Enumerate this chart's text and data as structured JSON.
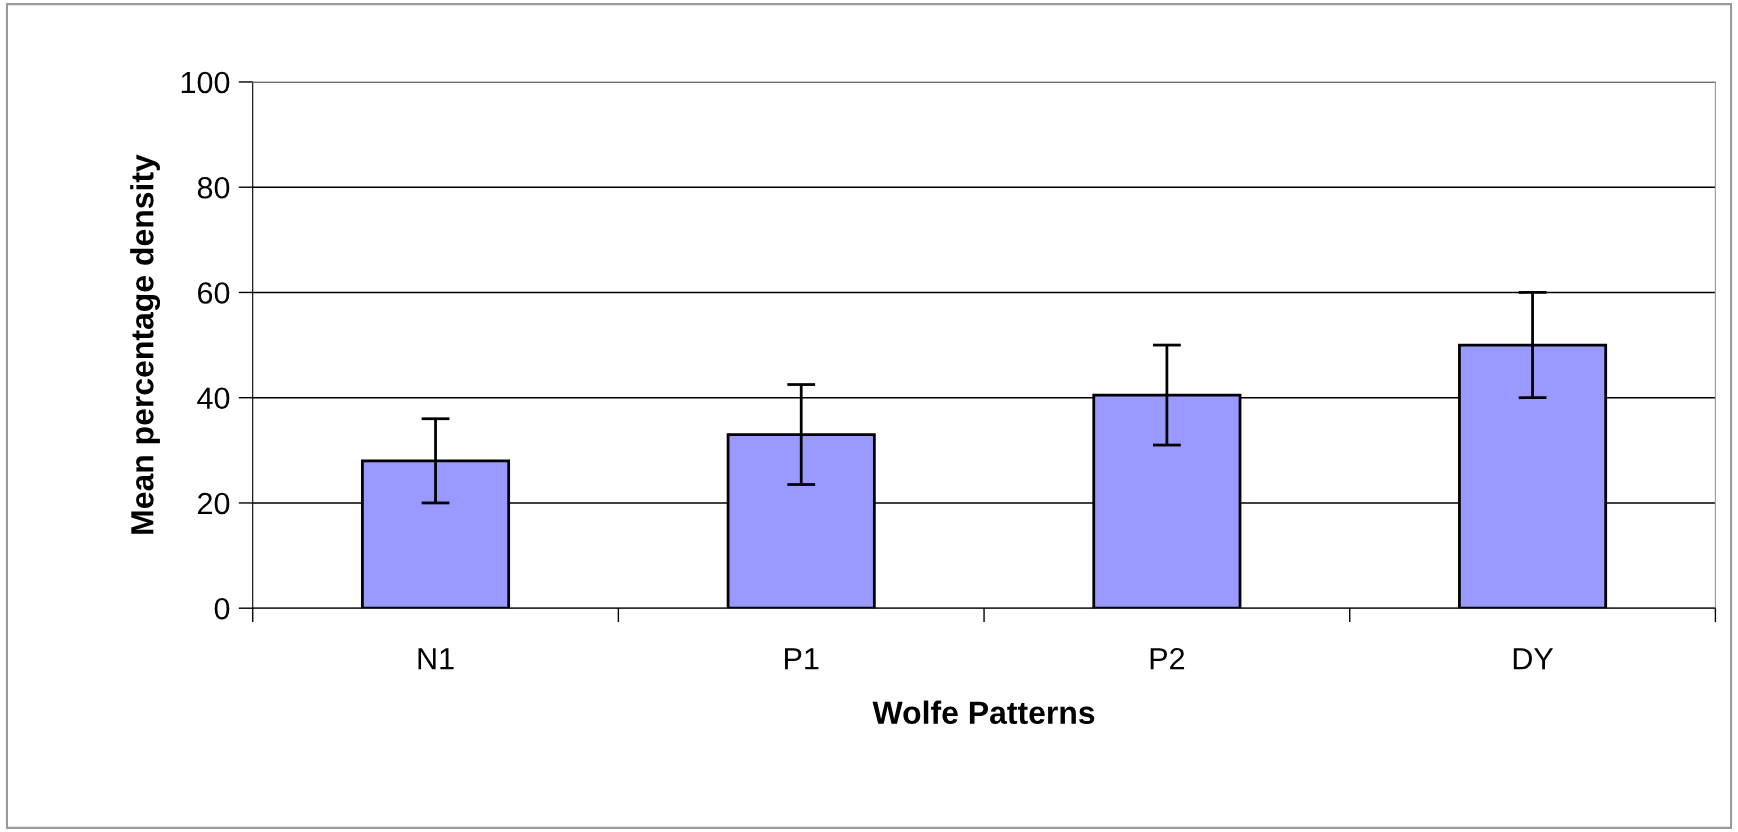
{
  "chart_data": {
    "type": "bar",
    "xlabel": "Wolfe Patterns",
    "ylabel": "Mean percentage density",
    "categories": [
      "N1",
      "P1",
      "P2",
      "DY"
    ],
    "values": [
      28,
      33,
      40.5,
      50
    ],
    "errors": [
      8,
      9.5,
      9.5,
      10
    ],
    "color": "#9999ff",
    "ylim": [
      0,
      100
    ],
    "yticks": [
      0,
      20,
      40,
      60,
      80,
      100
    ],
    "grid": "y",
    "legend": false
  }
}
